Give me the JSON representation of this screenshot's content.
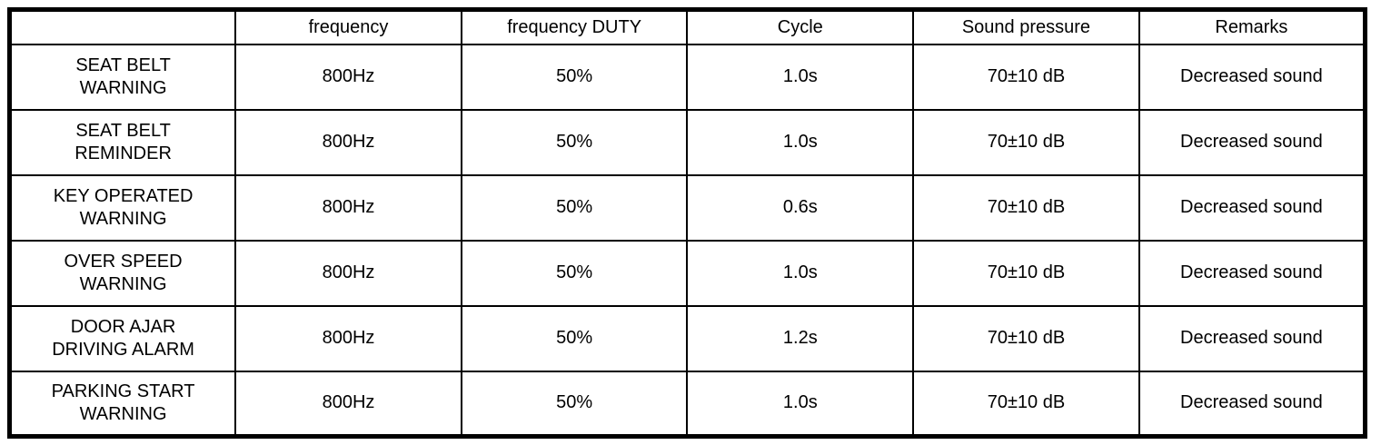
{
  "table": {
    "headers": {
      "item": "",
      "frequency": "frequency",
      "duty": "frequency DUTY",
      "cycle": "Cycle",
      "sound_pressure": "Sound pressure",
      "remarks": "Remarks"
    },
    "rows": [
      {
        "name": "SEAT BELT\nWARNING",
        "frequency": "800Hz",
        "duty": "50%",
        "cycle": "1.0s",
        "sound_pressure": "70±10 dB",
        "remarks": "Decreased sound"
      },
      {
        "name": "SEAT BELT\nREMINDER",
        "frequency": "800Hz",
        "duty": "50%",
        "cycle": "1.0s",
        "sound_pressure": "70±10 dB",
        "remarks": "Decreased sound"
      },
      {
        "name": "KEY OPERATED\nWARNING",
        "frequency": "800Hz",
        "duty": "50%",
        "cycle": "0.6s",
        "sound_pressure": "70±10 dB",
        "remarks": "Decreased sound"
      },
      {
        "name": "OVER SPEED\nWARNING",
        "frequency": "800Hz",
        "duty": "50%",
        "cycle": "1.0s",
        "sound_pressure": "70±10 dB",
        "remarks": "Decreased sound"
      },
      {
        "name": "DOOR AJAR\nDRIVING ALARM",
        "frequency": "800Hz",
        "duty": "50%",
        "cycle": "1.2s",
        "sound_pressure": "70±10 dB",
        "remarks": "Decreased sound"
      },
      {
        "name": "PARKING START\nWARNING",
        "frequency": "800Hz",
        "duty": "50%",
        "cycle": "1.0s",
        "sound_pressure": "70±10 dB",
        "remarks": "Decreased sound"
      }
    ],
    "colors": {
      "border": "#000000",
      "background": "#ffffff",
      "text": "#000000"
    }
  }
}
